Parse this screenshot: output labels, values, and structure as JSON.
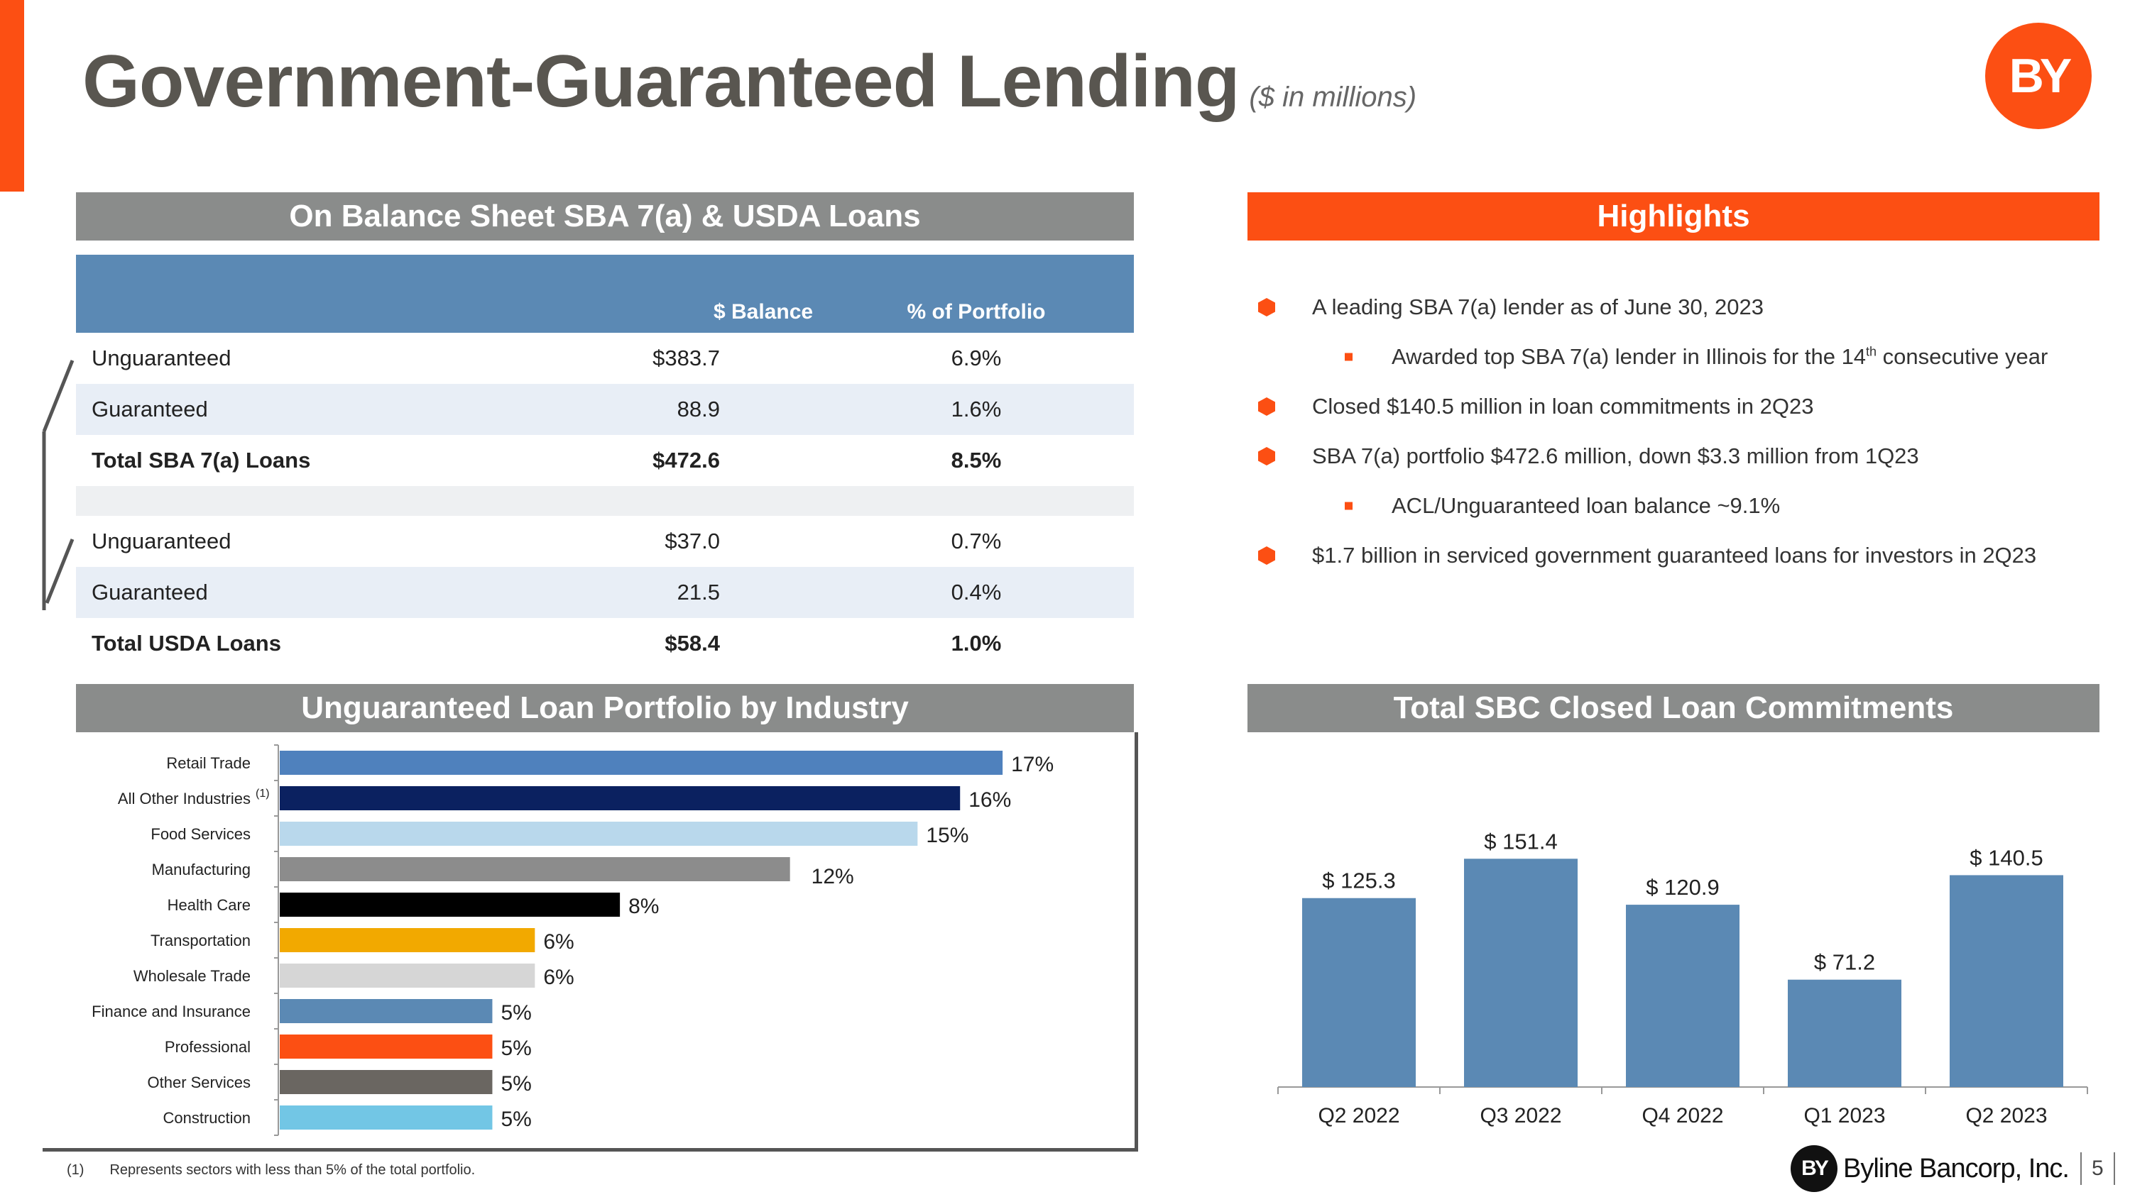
{
  "header": {
    "title": "Government-Guaranteed Lending",
    "subtitle": "($ in millions)",
    "logo_text": "BY"
  },
  "table": {
    "header": "On Balance Sheet SBA 7(a) & USDA Loans",
    "col_balance": "$ Balance",
    "col_pct": "% of Portfolio",
    "rows": [
      {
        "label": "Unguaranteed",
        "balance": "$383.7",
        "pct": "6.9%"
      },
      {
        "label": "Guaranteed",
        "balance": "88.9",
        "pct": "1.6%"
      },
      {
        "label": "Total SBA 7(a) Loans",
        "balance": "$472.6",
        "pct": "8.5%"
      },
      {
        "label": "Unguaranteed",
        "balance": "$37.0",
        "pct": "0.7%"
      },
      {
        "label": "Guaranteed",
        "balance": "21.5",
        "pct": "0.4%"
      },
      {
        "label": "Total USDA Loans",
        "balance": "$58.4",
        "pct": "1.0%"
      }
    ]
  },
  "highlights": {
    "header": "Highlights",
    "items": [
      {
        "text": "A leading SBA 7(a) lender as of June 30, 2023"
      },
      {
        "text_a": "Awarded top SBA 7(a) lender in Illinois for the 14",
        "sup": "th",
        "text_b": " consecutive year"
      },
      {
        "text": "Closed $140.5 million in loan commitments in 2Q23"
      },
      {
        "text": "SBA 7(a) portfolio $472.6 million, down $3.3 million from 1Q23"
      },
      {
        "text": "ACL/Unguaranteed loan balance ~9.1%"
      },
      {
        "text": "$1.7 billion in serviced government guaranteed loans for investors in 2Q23"
      }
    ]
  },
  "industry_header": "Unguaranteed Loan Portfolio by Industry",
  "commitments_header": "Total SBC Closed Loan Commitments",
  "footnote": {
    "num": "(1)",
    "text": "Represents sectors with less than 5% of the total portfolio."
  },
  "footer": {
    "brand_mark": "BY",
    "brand": "Byline Bancorp, Inc.",
    "page": "5"
  },
  "colors": {
    "orange": "#fc4f13",
    "gray_header": "#8a8c8b",
    "blue": "#5b89b4"
  },
  "chart_data": [
    {
      "type": "bar",
      "orientation": "horizontal",
      "title": "Unguaranteed Loan Portfolio by Industry",
      "categories": [
        "Retail Trade",
        "All Other Industries",
        "Food Services",
        "Manufacturing",
        "Health Care",
        "Transportation",
        "Wholesale Trade",
        "Finance and Insurance",
        "Professional",
        "Other Services",
        "Construction"
      ],
      "category_footnotes": [
        "",
        "(1)",
        "",
        "",
        "",
        "",
        "",
        "",
        "",
        "",
        ""
      ],
      "values": [
        17,
        16,
        15,
        12,
        8,
        6,
        6,
        5,
        5,
        5,
        5
      ],
      "labels": [
        "17%",
        "16%",
        "15%",
        "12%",
        "8%",
        "6%",
        "6%",
        "5%",
        "5%",
        "5%",
        "5%"
      ],
      "bar_colors": [
        "#4f81bd",
        "#0b2160",
        "#b9d8ec",
        "#8c8c8c",
        "#000000",
        "#f2a900",
        "#d6d6d6",
        "#5b89b4",
        "#fc4f13",
        "#6a6661",
        "#72c6e5"
      ],
      "xlim": [
        0,
        18
      ]
    },
    {
      "type": "bar",
      "title": "Total SBC Closed Loan Commitments",
      "categories": [
        "Q2 2022",
        "Q3 2022",
        "Q4 2022",
        "Q1 2023",
        "Q2 2023"
      ],
      "values": [
        125.3,
        151.4,
        120.9,
        71.2,
        140.5
      ],
      "labels": [
        "$ 125.3",
        "$ 151.4",
        "$ 120.9",
        "$ 71.2",
        "$ 140.5"
      ],
      "color": "#5b89b4",
      "ylim": [
        0,
        160
      ]
    }
  ]
}
